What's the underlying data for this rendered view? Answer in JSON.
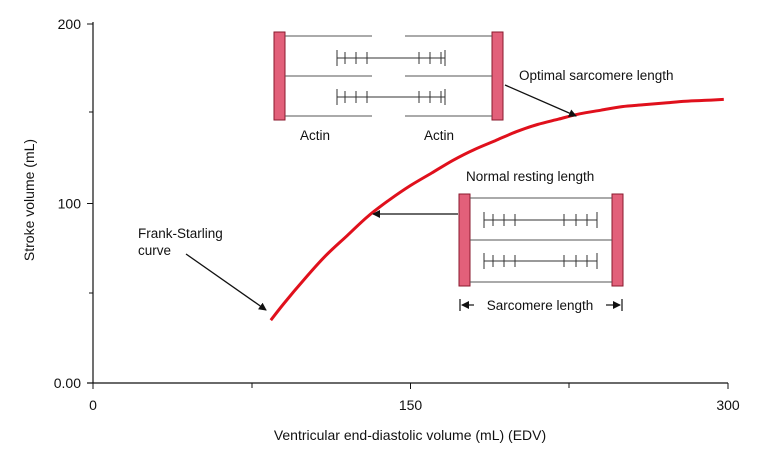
{
  "chart_data": {
    "type": "line",
    "title": "",
    "xlabel": "Ventricular end-diastolic volume (mL) (EDV)",
    "ylabel": "Stroke volume (mL)",
    "xlim": [
      0,
      300
    ],
    "ylim": [
      0,
      200
    ],
    "x_ticks": [
      {
        "value": 0,
        "label": "0"
      },
      {
        "value": 150,
        "label": "150"
      },
      {
        "value": 300,
        "label": "300"
      }
    ],
    "y_ticks": [
      {
        "value": 0,
        "label": "0.00"
      },
      {
        "value": 100,
        "label": "100"
      },
      {
        "value": 200,
        "label": "200"
      }
    ],
    "grid": false,
    "series": [
      {
        "color": "#e0101c",
        "x": [
          84,
          90,
          100,
          110,
          120,
          130,
          140,
          150,
          160,
          170,
          180,
          190,
          200,
          210,
          220,
          230,
          240,
          250,
          260,
          270,
          280,
          290,
          298
        ],
        "y": [
          35,
          44,
          58,
          71,
          82,
          93,
          102,
          110,
          117,
          124,
          130,
          135,
          140,
          144,
          147,
          150,
          152,
          154,
          155,
          156,
          157,
          157.5,
          158
        ]
      }
    ],
    "annotations": {
      "optimal": "Optimal sarcomere length",
      "normal": "Normal resting length",
      "frank_starling_line1": "Frank-Starling",
      "frank_starling_line2": "curve",
      "actin_left": "Actin",
      "actin_right": "Actin",
      "sarcomere_length": "Sarcomere length"
    },
    "colors": {
      "curve": "#e0101c",
      "z_disc_fill": "#e2607a",
      "z_disc_stroke": "#8a1a2e"
    }
  }
}
